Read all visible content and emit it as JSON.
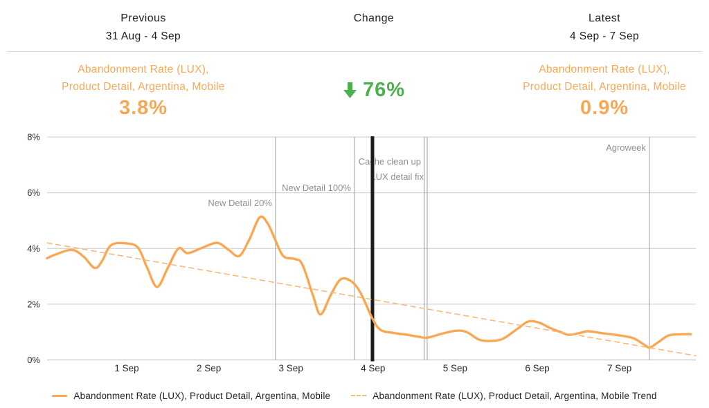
{
  "header": {
    "previous": {
      "title": "Previous",
      "range": "31 Aug - 4 Sep"
    },
    "change": {
      "title": "Change"
    },
    "latest": {
      "title": "Latest",
      "range": "4 Sep - 7 Sep"
    }
  },
  "metrics": {
    "previous": {
      "label_line1": "Abandonment Rate (LUX),",
      "label_line2": "Product Detail, Argentina, Mobile",
      "value": "3.8%"
    },
    "change": {
      "direction": "down",
      "value": "76%"
    },
    "latest": {
      "label_line1": "Abandonment Rate (LUX),",
      "label_line2": "Product Detail, Argentina, Mobile",
      "value": "0.9%"
    }
  },
  "colors": {
    "accent_orange": "#F8A855",
    "trend_orange": "#F9B878",
    "positive_green": "#4CAF50",
    "grid": "#cccccc",
    "axis_baseline": "#b3b3b3",
    "annotation_line": "#9e9e9e",
    "annotation_text": "#8f8f8f",
    "tick_text": "#2b2b2b",
    "split_line": "#1c1c1c"
  },
  "chart_data": {
    "type": "line",
    "title": "",
    "xlabel": "",
    "ylabel": "",
    "grid": "horizontal",
    "legend_position": "bottom",
    "y_axis": {
      "unit": "%",
      "range": [
        0,
        8
      ],
      "tick_values": [
        0,
        2,
        4,
        6,
        8
      ],
      "tick_labels": [
        "0%",
        "2%",
        "4%",
        "6%",
        "8%"
      ]
    },
    "x_axis": {
      "unit": "days",
      "range_days": [
        0.03,
        7.93
      ],
      "tick_days": [
        1,
        2,
        3,
        4,
        5,
        6,
        7
      ],
      "tick_labels": [
        "1 Sep",
        "2 Sep",
        "3 Sep",
        "4 Sep",
        "5 Sep",
        "6 Sep",
        "7 Sep"
      ]
    },
    "series": [
      {
        "name": "Abandonment Rate (LUX), Product Detail, Argentina, Mobile",
        "style": "solid",
        "color": "#F8A855",
        "points": [
          [
            0.03,
            3.65
          ],
          [
            0.13,
            3.78
          ],
          [
            0.33,
            3.95
          ],
          [
            0.47,
            3.72
          ],
          [
            0.61,
            3.3
          ],
          [
            0.7,
            3.55
          ],
          [
            0.81,
            4.12
          ],
          [
            1.0,
            4.18
          ],
          [
            1.14,
            4.02
          ],
          [
            1.25,
            3.3
          ],
          [
            1.37,
            2.62
          ],
          [
            1.5,
            3.3
          ],
          [
            1.63,
            4.0
          ],
          [
            1.74,
            3.83
          ],
          [
            1.9,
            4.0
          ],
          [
            2.1,
            4.2
          ],
          [
            2.24,
            3.95
          ],
          [
            2.37,
            3.73
          ],
          [
            2.49,
            4.3
          ],
          [
            2.62,
            5.12
          ],
          [
            2.72,
            4.88
          ],
          [
            2.81,
            4.3
          ],
          [
            2.91,
            3.72
          ],
          [
            3.05,
            3.62
          ],
          [
            3.14,
            3.42
          ],
          [
            3.27,
            2.3
          ],
          [
            3.36,
            1.63
          ],
          [
            3.48,
            2.3
          ],
          [
            3.6,
            2.88
          ],
          [
            3.72,
            2.85
          ],
          [
            3.84,
            2.45
          ],
          [
            3.99,
            1.5
          ],
          [
            4.09,
            1.08
          ],
          [
            4.25,
            0.97
          ],
          [
            4.42,
            0.9
          ],
          [
            4.56,
            0.83
          ],
          [
            4.66,
            0.8
          ],
          [
            4.85,
            0.95
          ],
          [
            5.02,
            1.05
          ],
          [
            5.14,
            1.0
          ],
          [
            5.29,
            0.73
          ],
          [
            5.43,
            0.68
          ],
          [
            5.58,
            0.76
          ],
          [
            5.76,
            1.12
          ],
          [
            5.89,
            1.38
          ],
          [
            6.02,
            1.34
          ],
          [
            6.16,
            1.14
          ],
          [
            6.31,
            0.97
          ],
          [
            6.39,
            0.9
          ],
          [
            6.52,
            0.97
          ],
          [
            6.62,
            1.03
          ],
          [
            6.81,
            0.95
          ],
          [
            7.0,
            0.88
          ],
          [
            7.17,
            0.78
          ],
          [
            7.3,
            0.55
          ],
          [
            7.37,
            0.45
          ],
          [
            7.48,
            0.65
          ],
          [
            7.6,
            0.88
          ],
          [
            7.75,
            0.92
          ],
          [
            7.87,
            0.92
          ]
        ]
      },
      {
        "name": "Abandonment Rate (LUX), Product Detail, Argentina, Mobile Trend",
        "style": "dashed",
        "color": "#F9B878",
        "points": [
          [
            0.03,
            4.2
          ],
          [
            7.93,
            0.15
          ]
        ]
      }
    ],
    "annotations": [
      {
        "label": "New Detail 20%",
        "day": 2.812,
        "label_baseline": 113
      },
      {
        "label": "New Detail 100%",
        "day": 3.773,
        "label_baseline": 91
      },
      {
        "label": "Cache clean up",
        "day": 4.625,
        "label_baseline": 53
      },
      {
        "label": "LUX detail fix",
        "day": 4.659,
        "label_baseline": 75
      },
      {
        "label": "Agroweek",
        "day": 7.365,
        "label_baseline": 33
      }
    ],
    "period_split": {
      "day": 3.993
    }
  },
  "legend": [
    {
      "label": "Abandonment Rate (LUX), Product Detail, Argentina, Mobile",
      "style": "solid"
    },
    {
      "label": "Abandonment Rate (LUX), Product Detail, Argentina, Mobile Trend",
      "style": "dashed"
    }
  ]
}
